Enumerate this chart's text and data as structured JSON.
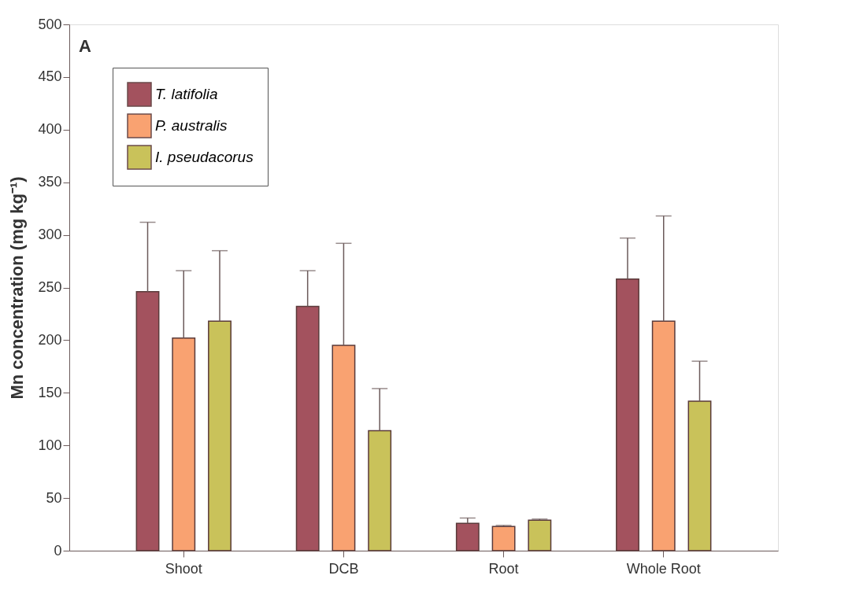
{
  "chart_data": {
    "type": "bar",
    "ylabel": "Mn concentration (mg kg⁻¹)",
    "categories": [
      "Shoot",
      "DCB",
      "Root",
      "Whole Root"
    ],
    "series": [
      {
        "name": "T. latifolia",
        "color": "#a3525e",
        "values": [
          246,
          232,
          26,
          258
        ],
        "errors": [
          [
            246,
            312
          ],
          [
            232,
            266
          ],
          [
            26,
            31
          ],
          [
            258,
            297
          ]
        ]
      },
      {
        "name": "P. australis",
        "color": "#f9a271",
        "values": [
          202,
          195,
          23,
          218
        ],
        "errors": [
          [
            202,
            266
          ],
          [
            195,
            292
          ],
          [
            23,
            24
          ],
          [
            218,
            318
          ]
        ]
      },
      {
        "name": "I. pseudacorus",
        "color": "#c9c25a",
        "values": [
          218,
          114,
          29,
          142
        ],
        "errors": [
          [
            218,
            285
          ],
          [
            114,
            154
          ],
          [
            29,
            30
          ],
          [
            142,
            180
          ]
        ]
      }
    ],
    "ylim": [
      0,
      500
    ],
    "yticks": [
      0,
      50,
      100,
      150,
      200,
      250,
      300,
      350,
      400,
      450,
      500
    ],
    "grid": false,
    "legend": "top left",
    "annotations": [
      "A"
    ]
  }
}
